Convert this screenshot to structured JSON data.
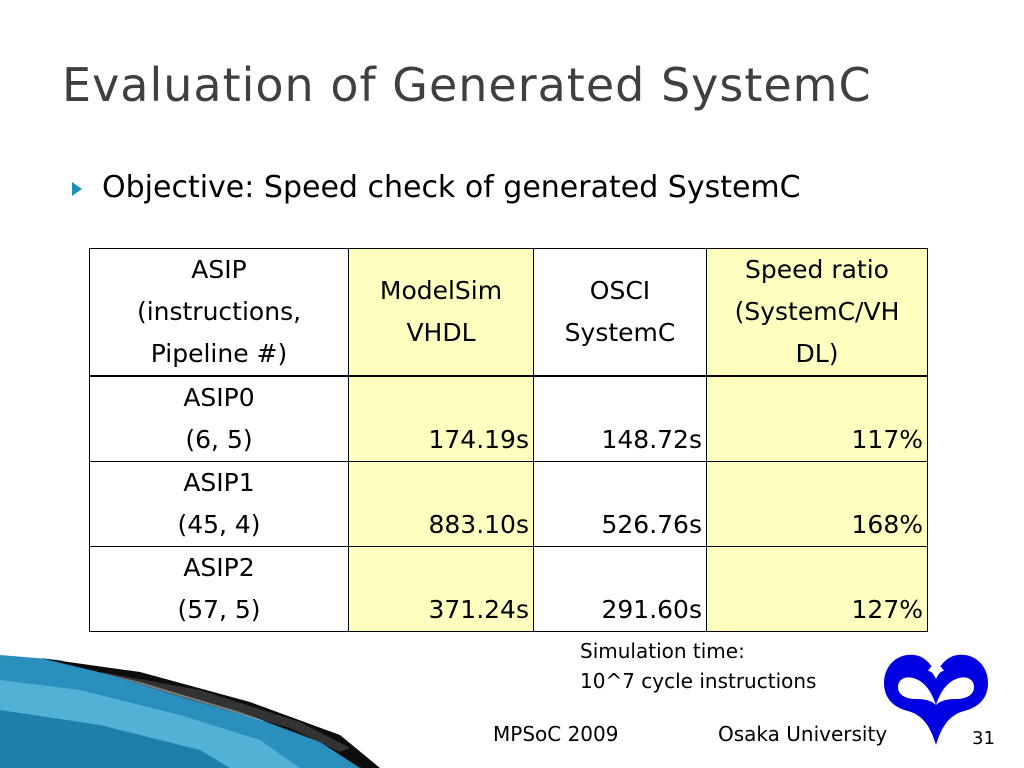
{
  "slide": {
    "title": "Evaluation of Generated SystemC",
    "bullet": "Objective: Speed check of generated SystemC"
  },
  "table": {
    "headers": [
      {
        "lines": [
          "ASIP",
          "(instructions,",
          "Pipeline #)"
        ]
      },
      {
        "lines": [
          "ModelSim",
          "VHDL"
        ]
      },
      {
        "lines": [
          "OSCI",
          "SystemC"
        ]
      },
      {
        "lines": [
          "Speed ratio",
          "(SystemC/VH",
          "DL)"
        ]
      }
    ],
    "rows": [
      {
        "asip": "ASIP0",
        "params": "(6, 5)",
        "modelsim": "174.19s",
        "osci": "148.72s",
        "ratio": "117%"
      },
      {
        "asip": "ASIP1",
        "params": "(45, 4)",
        "modelsim": "883.10s",
        "osci": "526.76s",
        "ratio": "168%"
      },
      {
        "asip": "ASIP2",
        "params": "(57, 5)",
        "modelsim": "371.24s",
        "osci": "291.60s",
        "ratio": "127%"
      }
    ]
  },
  "note": {
    "line1": "Simulation time:",
    "line2": "10^7 cycle instructions"
  },
  "footer": {
    "left": "MPSoC 2009",
    "center": "Osaka University",
    "page": "31"
  },
  "colors": {
    "title": "#404040",
    "highlight": "#ffffc0",
    "bullet": "#1c8fb4",
    "logo": "#0000e0",
    "wave_dark": "#1a7fa8",
    "wave_light": "#5bb8d8"
  },
  "icons": {
    "bullet": "triangle-bullet-icon",
    "logo": "osaka-university-logo"
  }
}
